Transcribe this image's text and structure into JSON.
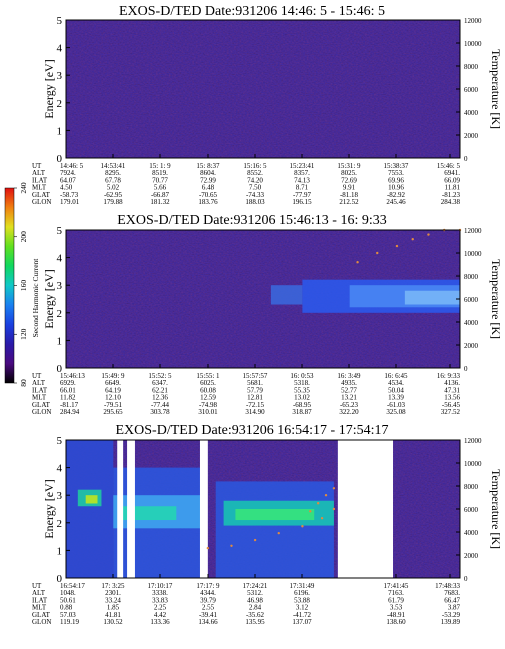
{
  "chart_data": [
    {
      "type": "heatmap",
      "title": "EXOS-D/TED   Date:931206  14:46: 5 - 15:46: 5",
      "ylabel": "Energy [eV]",
      "y2label": "Temperature [K]",
      "ylim": [
        0,
        5
      ],
      "y2lim": [
        0,
        12000
      ],
      "yticks": [
        "0",
        "1",
        "2",
        "3",
        "4",
        "5"
      ],
      "y2ticks": [
        "0",
        "2000",
        "4000",
        "6000",
        "8000",
        "10000",
        "12000"
      ],
      "features": [],
      "gaps": [],
      "traces": [],
      "table": {
        "labels": [
          "UT",
          "ALT",
          "ILAT",
          "MLT",
          "GLAT",
          "GLON"
        ],
        "columns": [
          [
            "14:46: 5",
            "7924.",
            "64.07",
            "4.50",
            "-58.73",
            "179.01"
          ],
          [
            "14:53:41",
            "8295.",
            "67.78",
            "5.02",
            "-62.95",
            "179.88"
          ],
          [
            "15: 1: 9",
            "8519.",
            "70.77",
            "5.66",
            "-66.87",
            "181.32"
          ],
          [
            "15: 8:37",
            "8604.",
            "72.99",
            "6.48",
            "-70.65",
            "183.76"
          ],
          [
            "15:16: 5",
            "8552.",
            "74.20",
            "7.50",
            "-74.33",
            "188.03"
          ],
          [
            "15:23:41",
            "8357.",
            "74.13",
            "8.71",
            "-77.97",
            "196.15"
          ],
          [
            "15:31: 9",
            "8025.",
            "72.69",
            "9.91",
            "-81.18",
            "212.52"
          ],
          [
            "15:38:37",
            "7553.",
            "69.96",
            "10.96",
            "-82.92",
            "245.46"
          ],
          [
            "15:46: 5",
            "6941.",
            "66.09",
            "11.81",
            "-81.23",
            "284.38"
          ]
        ]
      }
    },
    {
      "type": "heatmap",
      "title": "EXOS-D/TED   Date:931206  15:46:13 - 16: 9:33",
      "ylabel": "Energy [eV]",
      "y2label": "Temperature [K]",
      "ylim": [
        0,
        5
      ],
      "y2lim": [
        0,
        12000
      ],
      "yticks": [
        "0",
        "1",
        "2",
        "3",
        "4",
        "5"
      ],
      "y2ticks": [
        "0",
        "2000",
        "4000",
        "6000",
        "8000",
        "10000",
        "12000"
      ],
      "features": [
        {
          "x0": 0.52,
          "x1": 0.6,
          "y0": 2.3,
          "y1": 3.0,
          "color": "#3a6adf"
        },
        {
          "x0": 0.6,
          "x1": 1.0,
          "y0": 2.0,
          "y1": 3.2,
          "color": "#2a5af0"
        },
        {
          "x0": 0.72,
          "x1": 1.0,
          "y0": 2.2,
          "y1": 3.0,
          "color": "#4a8af5"
        },
        {
          "x0": 0.86,
          "x1": 1.0,
          "y0": 2.3,
          "y1": 2.8,
          "color": "#7ab8f8"
        }
      ],
      "gaps": [],
      "traces": [
        {
          "x": [
            0.74,
            0.79,
            0.84,
            0.88,
            0.92,
            0.96,
            1.0
          ],
          "y": [
            9200,
            10000,
            10600,
            11200,
            11600,
            12000,
            12000
          ]
        }
      ],
      "table": {
        "labels": [
          "UT",
          "ALT",
          "ILAT",
          "MLT",
          "GLAT",
          "GLON"
        ],
        "columns": [
          [
            "15:46:13",
            "6929.",
            "66.01",
            "11.82",
            "-81.17",
            "284.94"
          ],
          [
            "15:49: 9",
            "6649.",
            "64.19",
            "12.10",
            "-79.51",
            "295.65"
          ],
          [
            "15:52: 5",
            "6347.",
            "62.21",
            "12.36",
            "-77.44",
            "303.78"
          ],
          [
            "15:55: 1",
            "6025.",
            "60.08",
            "12.59",
            "-74.98",
            "310.01"
          ],
          [
            "15:57:57",
            "5681.",
            "57.79",
            "12.81",
            "-72.15",
            "314.90"
          ],
          [
            "16: 0:53",
            "5318.",
            "55.35",
            "13.02",
            "-68.95",
            "318.87"
          ],
          [
            "16: 3:49",
            "4935.",
            "52.77",
            "13.21",
            "-65.23",
            "322.20"
          ],
          [
            "16: 6:45",
            "4534.",
            "50.04",
            "13.39",
            "-61.03",
            "325.08"
          ],
          [
            "16: 9:33",
            "4136.",
            "47.31",
            "13.56",
            "-56.45",
            "327.52"
          ]
        ]
      }
    },
    {
      "type": "heatmap",
      "title": "EXOS-D/TED   Date:931206  16:54:17 - 17:54:17",
      "ylabel": "Energy [eV]",
      "y2label": "Temperature [K]",
      "ylim": [
        0,
        5
      ],
      "y2lim": [
        0,
        12000
      ],
      "yticks": [
        "0",
        "1",
        "2",
        "3",
        "4",
        "5"
      ],
      "y2ticks": [
        "0",
        "2000",
        "4000",
        "6000",
        "8000",
        "10000",
        "12000"
      ],
      "features": [
        {
          "x0": 0.0,
          "x1": 0.12,
          "y0": 0.0,
          "y1": 5.0,
          "color": "#2a4ed8"
        },
        {
          "x0": 0.03,
          "x1": 0.09,
          "y0": 2.6,
          "y1": 3.2,
          "color": "#1fd0a0"
        },
        {
          "x0": 0.05,
          "x1": 0.08,
          "y0": 2.7,
          "y1": 3.0,
          "color": "#c8e818"
        },
        {
          "x0": 0.12,
          "x1": 0.35,
          "y0": 0.0,
          "y1": 4.0,
          "color": "#2a58e0"
        },
        {
          "x0": 0.12,
          "x1": 0.35,
          "y0": 1.8,
          "y1": 3.0,
          "color": "#3fa8f0"
        },
        {
          "x0": 0.14,
          "x1": 0.28,
          "y0": 2.1,
          "y1": 2.6,
          "color": "#22d8b0"
        },
        {
          "x0": 0.38,
          "x1": 0.68,
          "y0": 0.0,
          "y1": 3.5,
          "color": "#2a58e0"
        },
        {
          "x0": 0.4,
          "x1": 0.68,
          "y0": 1.9,
          "y1": 2.8,
          "color": "#18c8b0"
        },
        {
          "x0": 0.43,
          "x1": 0.63,
          "y0": 2.1,
          "y1": 2.5,
          "color": "#38e878"
        }
      ],
      "gaps": [
        {
          "x0": 0.13,
          "x1": 0.145
        },
        {
          "x0": 0.155,
          "x1": 0.175
        },
        {
          "x0": 0.34,
          "x1": 0.36
        },
        {
          "x0": 0.69,
          "x1": 0.83
        }
      ],
      "traces": [
        {
          "x": [
            0.36,
            0.42,
            0.48,
            0.54,
            0.6,
            0.65,
            0.68
          ],
          "y": [
            2600,
            2800,
            3300,
            3900,
            4500,
            5200,
            6000
          ]
        },
        {
          "x": [
            0.62,
            0.64,
            0.66,
            0.68
          ],
          "y": [
            5800,
            6500,
            7200,
            7800
          ]
        }
      ],
      "table": {
        "labels": [
          "UT",
          "ALT",
          "ILAT",
          "MLT",
          "GLAT",
          "GLON"
        ],
        "columns": [
          [
            "16:54:17",
            "1048.",
            "50.61",
            "0.88",
            "57.03",
            "119.19"
          ],
          [
            "17: 3:25",
            "2301.",
            "33.24",
            "1.85",
            "41.81",
            "130.52"
          ],
          [
            "17:10:17",
            "3338.",
            "33.83",
            "2.25",
            "4.42",
            "133.36"
          ],
          [
            "17:17: 9",
            "4344.",
            "39.79",
            "2.55",
            "-39.41",
            "134.66"
          ],
          [
            "17:24:21",
            "5312.",
            "46.98",
            "2.84",
            "-35.62",
            "135.95"
          ],
          [
            "17:31:49",
            "6196.",
            "53.88",
            "3.12",
            "-41.72",
            "137.07"
          ],
          [
            "",
            "",
            "",
            "",
            "",
            ""
          ],
          [
            "17:41:45",
            "7163.",
            "61.79",
            "3.53",
            "-48.91",
            "138.60"
          ],
          [
            "17:48:33",
            "7683.",
            "66.47",
            "3.87",
            "-53.29",
            "139.89"
          ]
        ]
      }
    }
  ],
  "colorbar": {
    "label": "Second Harmonic Current",
    "ticks": [
      "80",
      "120",
      "160",
      "200",
      "240"
    ],
    "stops": [
      "#000000",
      "#4a0a80",
      "#2a1aa8",
      "#1a40e0",
      "#1a80f0",
      "#10c8c8",
      "#10d860",
      "#60e020",
      "#e0e020",
      "#f08010",
      "#e01010"
    ]
  }
}
